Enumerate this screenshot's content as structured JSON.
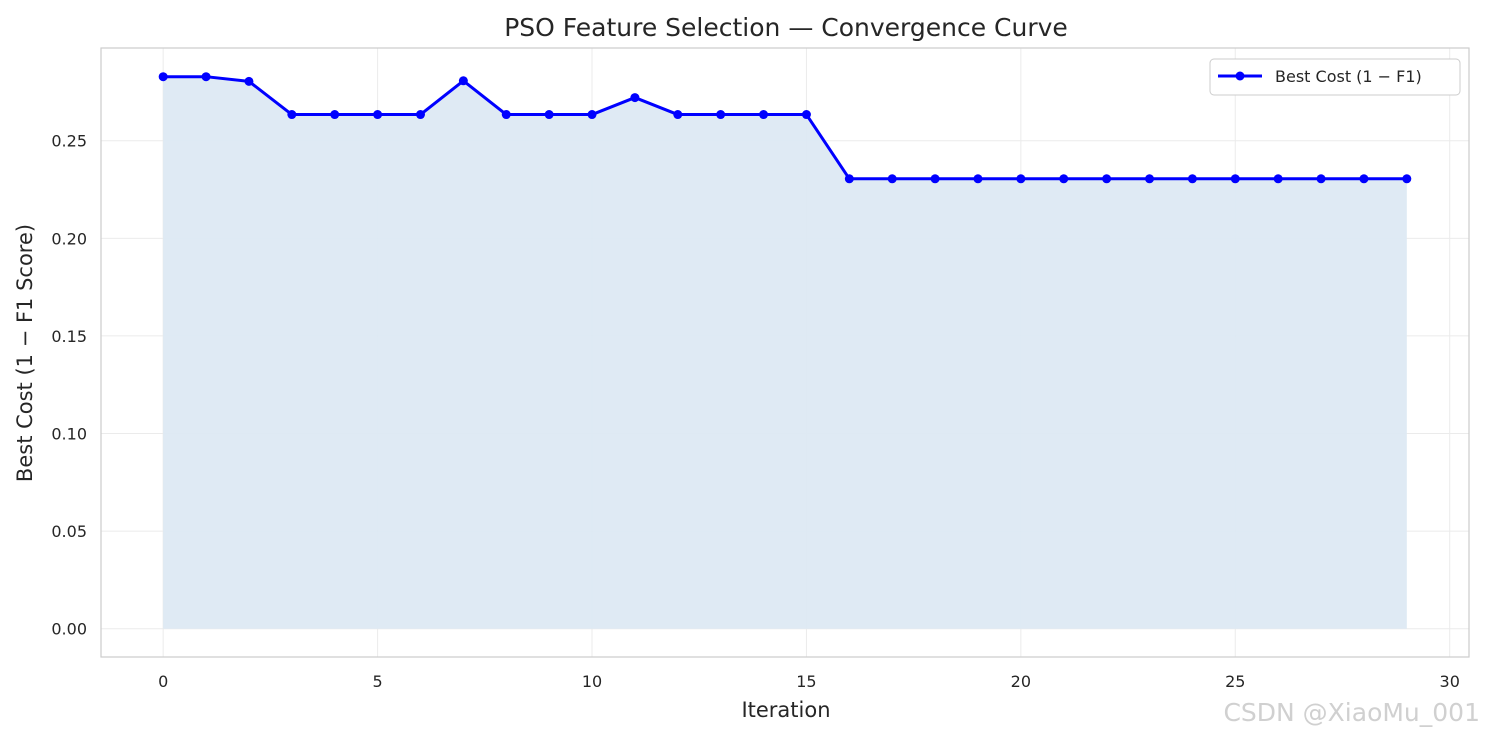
{
  "chart_data": {
    "type": "line",
    "title": "PSO Feature Selection — Convergence Curve",
    "xlabel": "Iteration",
    "ylabel": "Best Cost  (1 − F1 Score)",
    "xlim": [
      -1.45,
      30.45
    ],
    "ylim": [
      -0.0145,
      0.2975
    ],
    "x_ticks": [
      0,
      5,
      10,
      15,
      20,
      25,
      30
    ],
    "x_tick_labels": [
      "0",
      "5",
      "10",
      "15",
      "20",
      "25",
      "30"
    ],
    "y_ticks": [
      0.0,
      0.05,
      0.1,
      0.15,
      0.2,
      0.25
    ],
    "y_tick_labels": [
      "0.00",
      "0.05",
      "0.10",
      "0.15",
      "0.20",
      "0.25"
    ],
    "grid": true,
    "legend_position": "top-right",
    "series": [
      {
        "name": "Best Cost  (1 − F1)",
        "color": "#0000ff",
        "fill_color": "#dde9f3",
        "marker": "circle",
        "x": [
          0,
          1,
          2,
          3,
          4,
          5,
          6,
          7,
          8,
          9,
          10,
          11,
          12,
          13,
          14,
          15,
          16,
          17,
          18,
          19,
          20,
          21,
          22,
          23,
          24,
          25,
          26,
          27,
          28,
          29
        ],
        "values": [
          0.2828,
          0.2828,
          0.2804,
          0.2634,
          0.2634,
          0.2634,
          0.2634,
          0.2807,
          0.2634,
          0.2634,
          0.2634,
          0.2721,
          0.2634,
          0.2634,
          0.2634,
          0.2634,
          0.2305,
          0.2305,
          0.2305,
          0.2305,
          0.2305,
          0.2305,
          0.2305,
          0.2305,
          0.2305,
          0.2305,
          0.2305,
          0.2305,
          0.2305,
          0.2305
        ]
      }
    ]
  },
  "watermark": "CSDN @XiaoMu_001"
}
